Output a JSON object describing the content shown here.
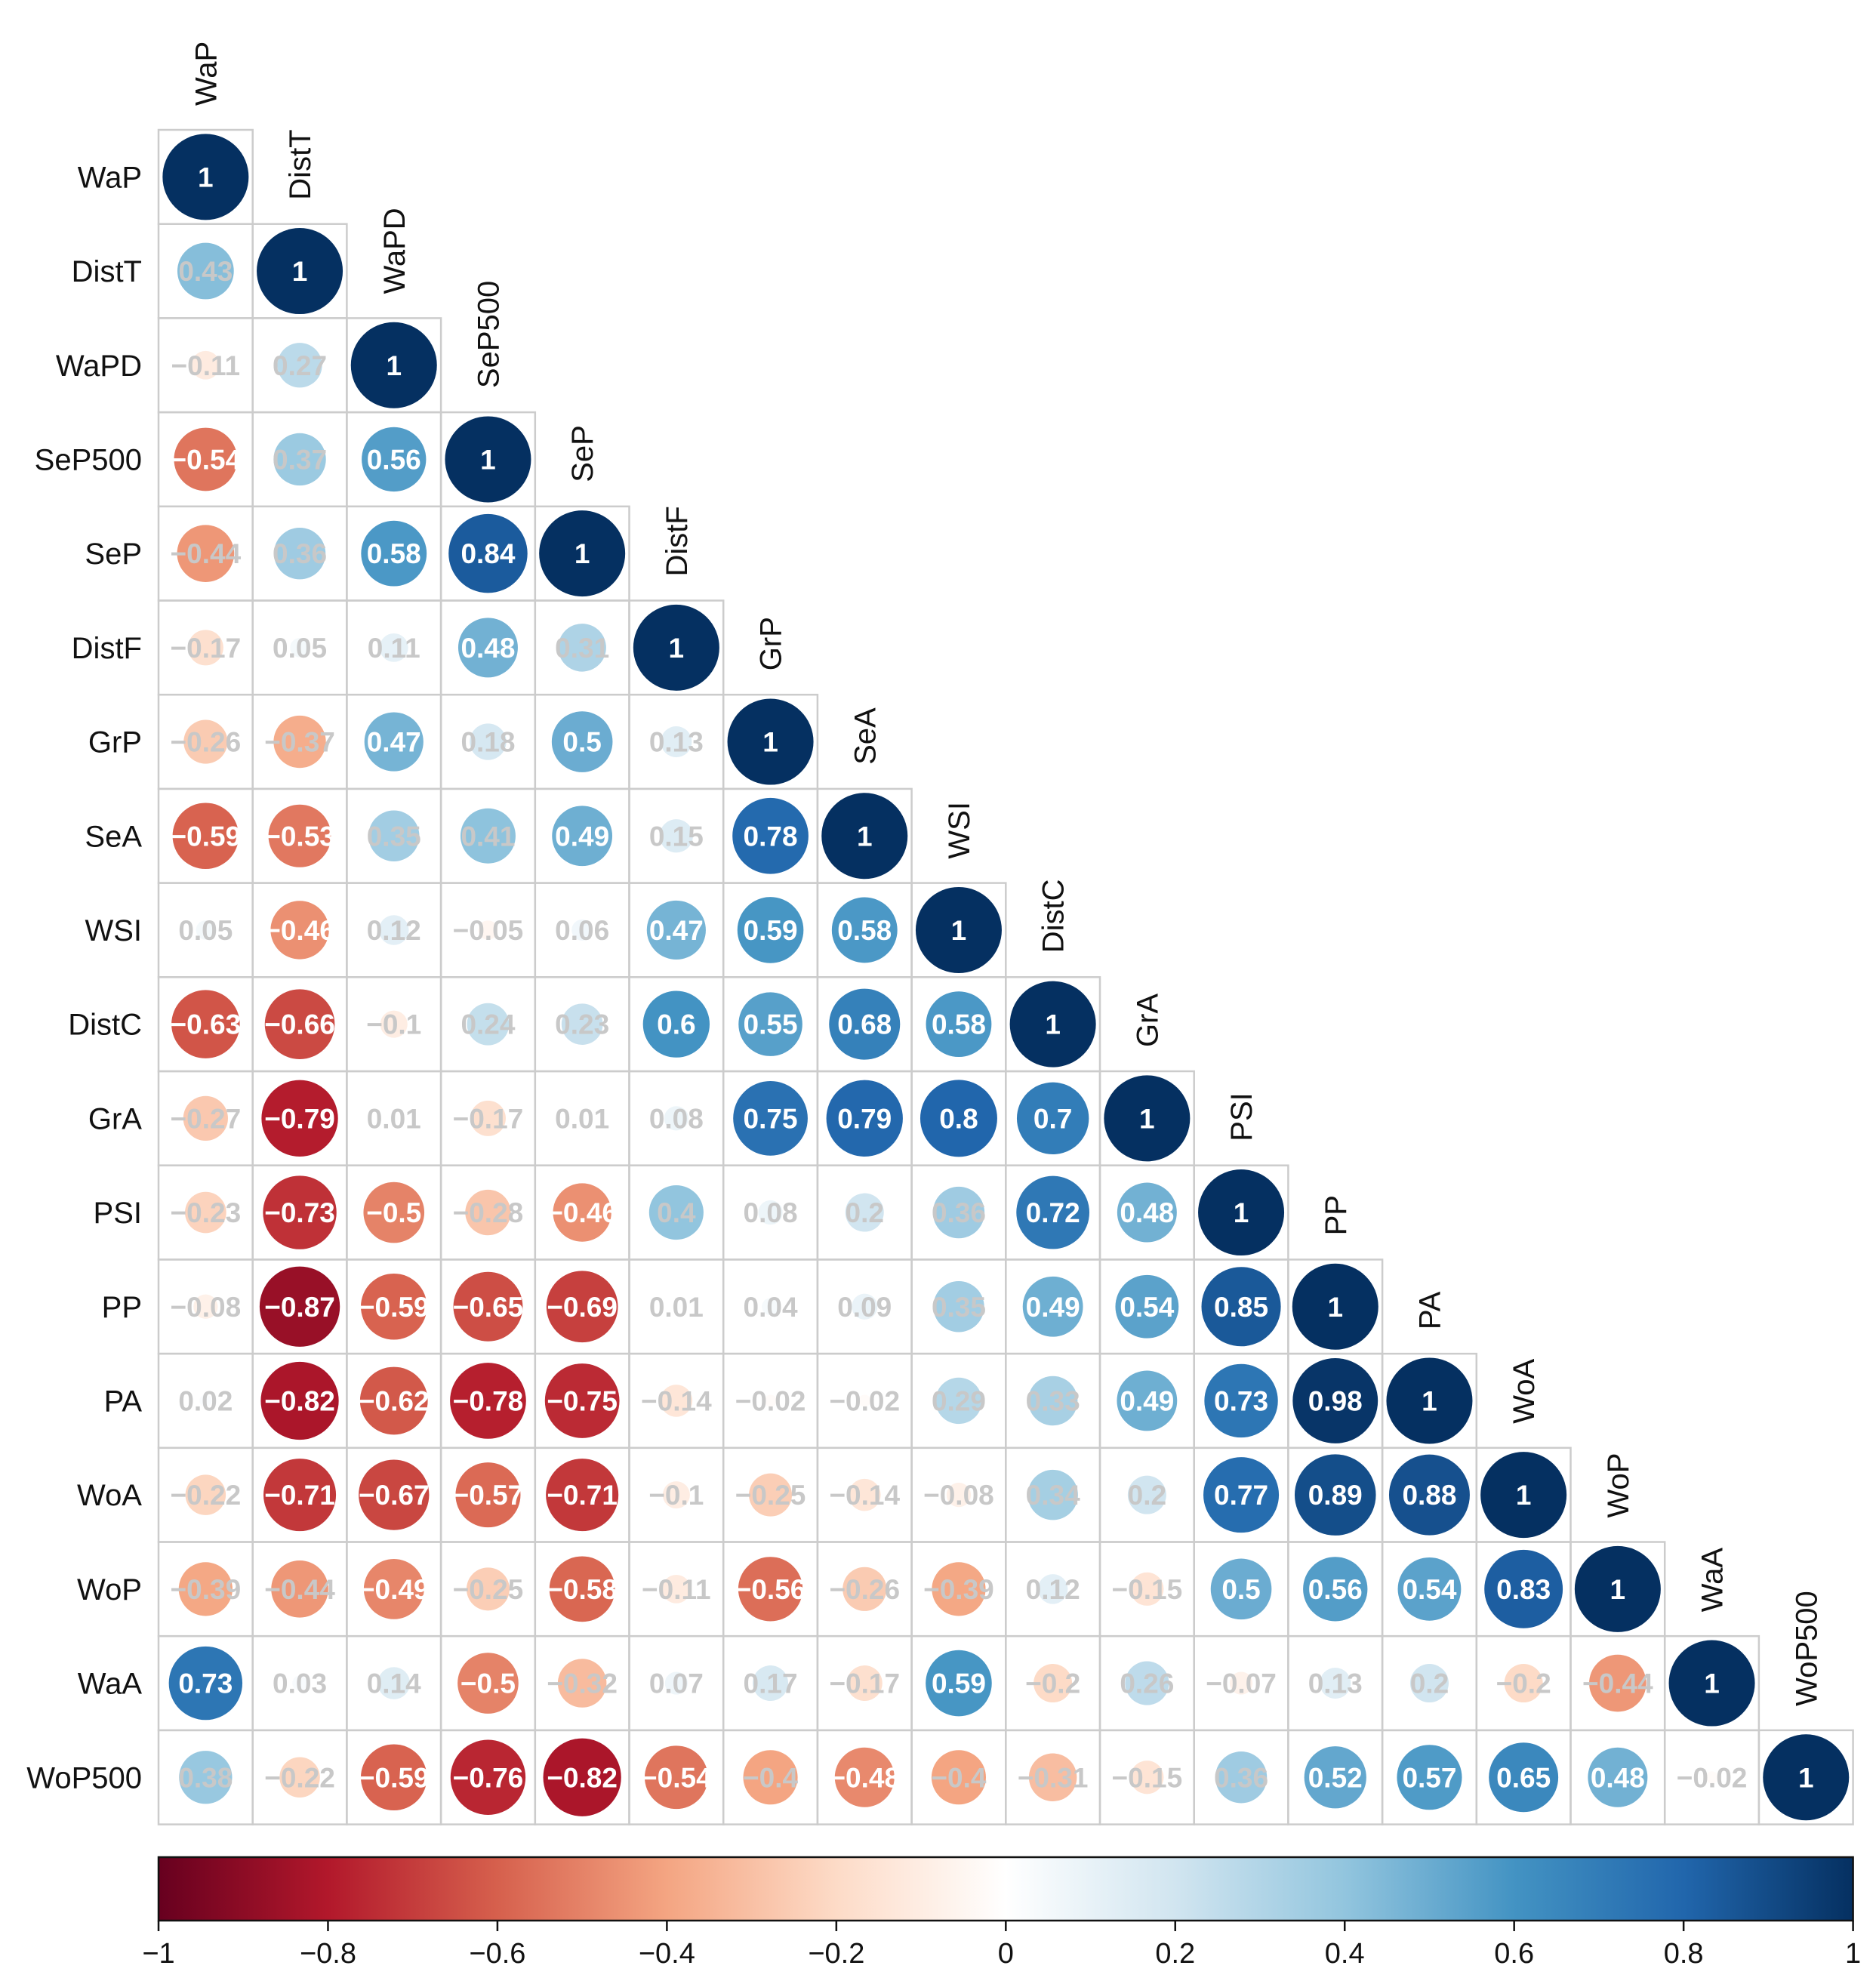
{
  "chart_data": {
    "type": "heatmap",
    "style": "correlation-circles-lower-triangle",
    "variables": [
      "WaP",
      "DistT",
      "WaPD",
      "SeP500",
      "SeP",
      "DistF",
      "GrP",
      "SeA",
      "WSI",
      "DistC",
      "GrA",
      "PSI",
      "PP",
      "PA",
      "WoA",
      "WoP",
      "WaA",
      "WoP500"
    ],
    "matrix": [
      [
        1
      ],
      [
        0.43,
        1
      ],
      [
        -0.11,
        0.27,
        1
      ],
      [
        -0.54,
        0.37,
        0.56,
        1
      ],
      [
        -0.44,
        0.36,
        0.58,
        0.84,
        1
      ],
      [
        -0.17,
        0.05,
        0.11,
        0.48,
        0.31,
        1
      ],
      [
        -0.26,
        -0.37,
        0.47,
        0.18,
        0.5,
        0.13,
        1
      ],
      [
        -0.59,
        -0.53,
        0.35,
        0.41,
        0.49,
        0.15,
        0.78,
        1
      ],
      [
        0.05,
        -0.46,
        0.12,
        -0.05,
        0.06,
        0.47,
        0.59,
        0.58,
        1
      ],
      [
        -0.63,
        -0.66,
        -0.1,
        0.24,
        0.23,
        0.6,
        0.55,
        0.68,
        0.58,
        1
      ],
      [
        -0.27,
        -0.79,
        0.01,
        -0.17,
        0.01,
        0.08,
        0.75,
        0.79,
        0.8,
        0.7,
        1
      ],
      [
        -0.23,
        -0.73,
        -0.5,
        -0.28,
        -0.46,
        0.4,
        0.08,
        0.2,
        0.36,
        0.72,
        0.48,
        1
      ],
      [
        -0.08,
        -0.87,
        -0.59,
        -0.65,
        -0.69,
        0.01,
        0.04,
        0.09,
        0.35,
        0.49,
        0.54,
        0.85,
        1
      ],
      [
        0.02,
        -0.82,
        -0.62,
        -0.78,
        -0.75,
        -0.14,
        -0.02,
        -0.02,
        0.29,
        0.33,
        0.49,
        0.73,
        0.98,
        1
      ],
      [
        -0.22,
        -0.71,
        -0.67,
        -0.57,
        -0.71,
        -0.1,
        -0.25,
        -0.14,
        -0.08,
        0.34,
        0.2,
        0.77,
        0.89,
        0.88,
        1
      ],
      [
        -0.39,
        -0.44,
        -0.49,
        -0.25,
        -0.58,
        -0.11,
        -0.56,
        -0.26,
        -0.39,
        0.12,
        -0.15,
        0.5,
        0.56,
        0.54,
        0.83,
        1
      ],
      [
        0.73,
        0.03,
        0.14,
        -0.5,
        -0.32,
        0.07,
        0.17,
        -0.17,
        0.59,
        -0.2,
        0.26,
        -0.07,
        0.13,
        0.2,
        -0.2,
        -0.44,
        1
      ],
      [
        0.38,
        -0.22,
        -0.59,
        -0.76,
        -0.82,
        -0.54,
        -0.4,
        -0.48,
        -0.4,
        -0.31,
        -0.15,
        0.36,
        0.52,
        0.57,
        0.65,
        0.48,
        -0.02,
        1
      ]
    ],
    "color_scale": {
      "range": [
        -1,
        1
      ],
      "ticks": [
        -1,
        -0.8,
        -0.6,
        -0.4,
        -0.2,
        0,
        0.2,
        0.4,
        0.6,
        0.8,
        1
      ],
      "tick_labels": [
        "−1",
        "−0.8",
        "−0.6",
        "−0.4",
        "−0.2",
        "0",
        "0.2",
        "0.4",
        "0.6",
        "0.8",
        "1"
      ],
      "stops": [
        "#67001f",
        "#b2182b",
        "#d6604d",
        "#f4a582",
        "#fddbc7",
        "#ffffff",
        "#d1e5f0",
        "#92c5de",
        "#4393c3",
        "#2166ac",
        "#053061"
      ]
    },
    "label_colors": {
      "strong": "#ffffff",
      "weak": "#c8c8c8",
      "grid": "#cccccc",
      "text": "#111111"
    }
  }
}
